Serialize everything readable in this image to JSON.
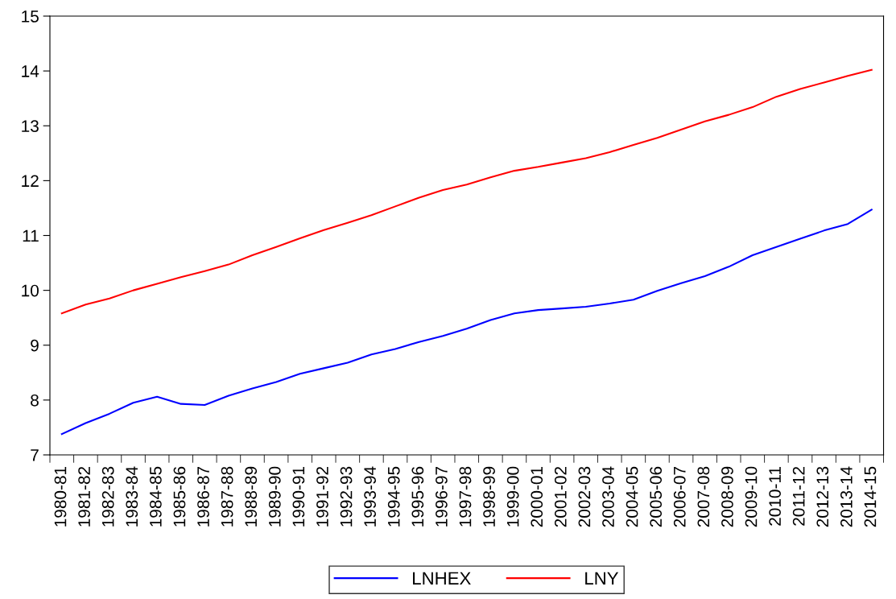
{
  "chart_data": {
    "type": "line",
    "categories": [
      "1980-81",
      "1981-82",
      "1982-83",
      "1983-84",
      "1984-85",
      "1985-86",
      "1986-87",
      "1987-88",
      "1988-89",
      "1989-90",
      "1990-91",
      "1991-92",
      "1992-93",
      "1993-94",
      "1994-95",
      "1995-96",
      "1996-97",
      "1997-98",
      "1998-99",
      "1999-00",
      "2000-01",
      "2001-02",
      "2002-03",
      "2003-04",
      "2004-05",
      "2005-06",
      "2006-07",
      "2007-08",
      "2008-09",
      "2009-10",
      "2010-11",
      "2011-12",
      "2012-13",
      "2013-14",
      "2014-15"
    ],
    "series": [
      {
        "name": "LNHEX",
        "color": "#0000ff",
        "values": [
          7.38,
          7.58,
          7.75,
          7.95,
          8.06,
          7.93,
          7.91,
          8.08,
          8.21,
          8.33,
          8.48,
          8.58,
          8.68,
          8.83,
          8.93,
          9.06,
          9.17,
          9.3,
          9.46,
          9.58,
          9.64,
          9.67,
          9.7,
          9.76,
          9.83,
          9.99,
          10.13,
          10.26,
          10.43,
          10.64,
          10.79,
          10.94,
          11.09,
          11.21,
          11.47
        ]
      },
      {
        "name": "LNY",
        "color": "#ff0000",
        "values": [
          9.58,
          9.74,
          9.85,
          10.0,
          10.12,
          10.24,
          10.35,
          10.47,
          10.64,
          10.79,
          10.95,
          11.1,
          11.23,
          11.37,
          11.53,
          11.69,
          11.83,
          11.93,
          12.06,
          12.18,
          12.25,
          12.33,
          12.41,
          12.52,
          12.65,
          12.78,
          12.93,
          13.08,
          13.2,
          13.34,
          13.53,
          13.67,
          13.79,
          13.91,
          14.02
        ]
      }
    ],
    "ylim": [
      7,
      15
    ],
    "yticks": [
      7,
      8,
      9,
      10,
      11,
      12,
      13,
      14,
      15
    ],
    "grid": false,
    "legend": "bottom",
    "marker": "none",
    "line_style": "solid"
  }
}
